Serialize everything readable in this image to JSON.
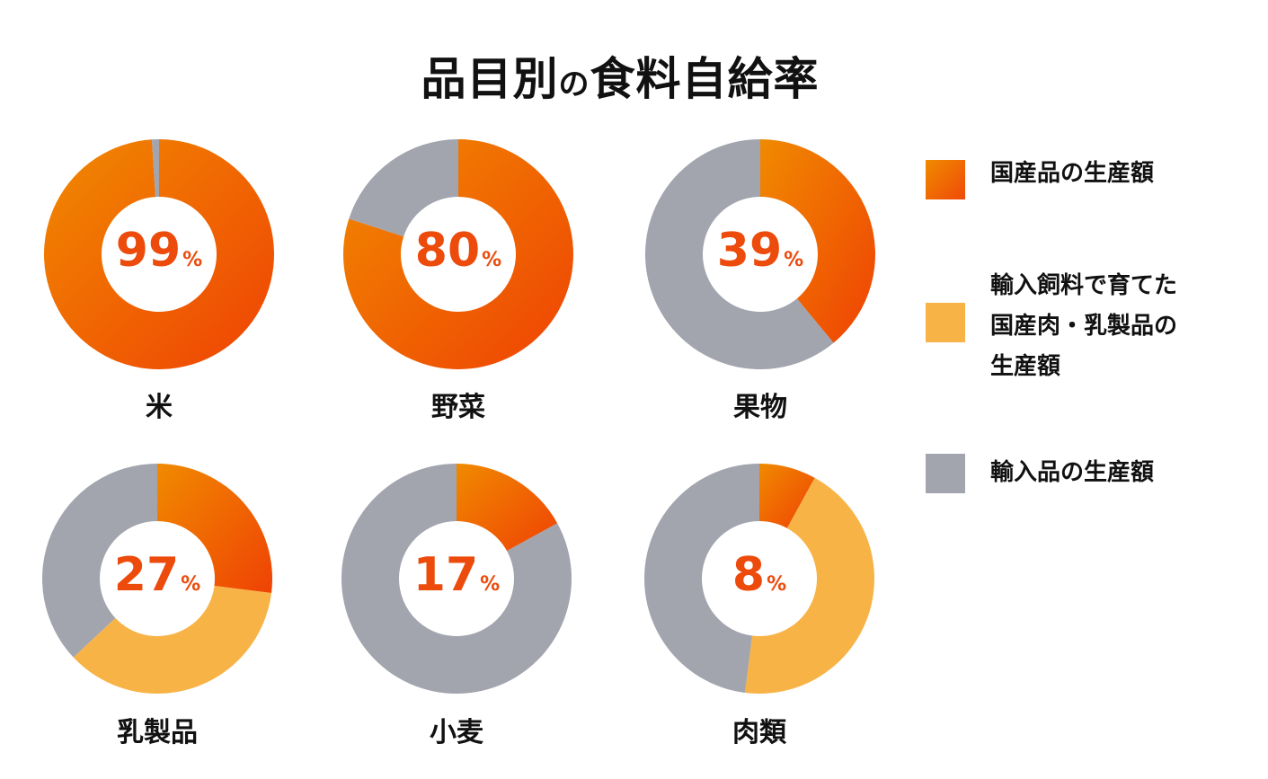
{
  "title": "品目別の食料自給率",
  "title_parts": [
    "品目別",
    "の",
    "食料自給率"
  ],
  "colors": {
    "domestic": "#ef5a0e",
    "domestic_light": "#f08a00",
    "feed_import": "#f8b347",
    "imported": "#a2a4ae",
    "percent_text": "#ec4b0c"
  },
  "legend": [
    {
      "key": "domestic",
      "lines": [
        "国産品の生産額"
      ]
    },
    {
      "key": "feed_import",
      "lines": [
        "輸入飼料で育てた",
        "国産肉・乳製品の",
        "生産額"
      ]
    },
    {
      "key": "imported",
      "lines": [
        "輸入品の生産額"
      ]
    }
  ],
  "chart_data": {
    "type": "pie",
    "title": "品目別の食料自給率",
    "unit": "%",
    "categories": [
      "米",
      "野菜",
      "果物",
      "乳製品",
      "小麦",
      "肉類"
    ],
    "series": [
      {
        "name": "国産品の生産額",
        "values": [
          99,
          80,
          39,
          27,
          17,
          8
        ]
      },
      {
        "name": "輸入飼料で育てた国産肉・乳製品の生産額",
        "values": [
          0,
          0,
          0,
          36,
          0,
          44
        ]
      },
      {
        "name": "輸入品の生産額",
        "values": [
          1,
          20,
          61,
          37,
          83,
          48
        ]
      }
    ],
    "center_labels": [
      "99",
      "80",
      "39",
      "27",
      "17",
      "8"
    ],
    "legend_position": "right"
  }
}
